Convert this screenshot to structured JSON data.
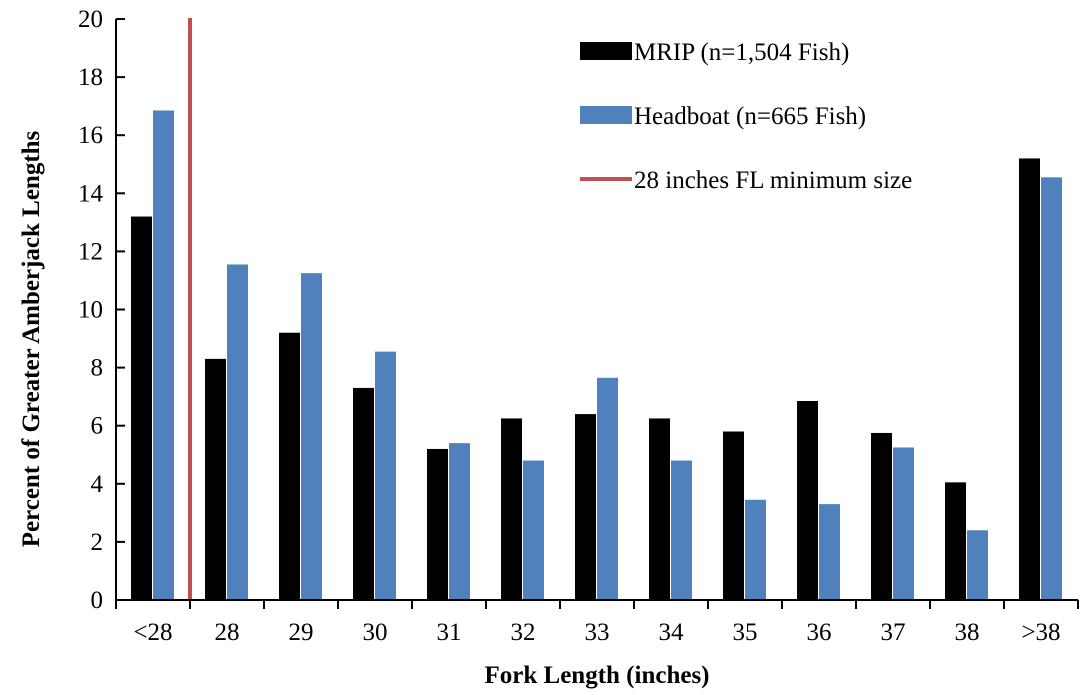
{
  "chart_data": {
    "type": "bar",
    "title": "",
    "xlabel": "Fork Length (inches)",
    "ylabel": "Percent of Greater Amberjack Lengths",
    "ylim": [
      0,
      20
    ],
    "yticks": [
      "0",
      "2",
      "4",
      "6",
      "8",
      "10",
      "12",
      "14",
      "16",
      "18",
      "20"
    ],
    "grid": false,
    "legend_position": "top-right",
    "categories": [
      "<28",
      "28",
      "29",
      "30",
      "31",
      "32",
      "33",
      "34",
      "35",
      "36",
      "37",
      "38",
      ">38"
    ],
    "series": [
      {
        "name": "MRIP (n=1,504 Fish)",
        "color": "#000000",
        "values": [
          13.2,
          8.3,
          9.2,
          7.3,
          5.2,
          6.25,
          6.4,
          6.25,
          5.8,
          6.85,
          5.75,
          4.05,
          15.2
        ]
      },
      {
        "name": "Headboat (n=665 Fish)",
        "color": "#4f81bd",
        "values": [
          16.85,
          11.55,
          11.25,
          8.55,
          5.4,
          4.8,
          7.65,
          4.8,
          3.45,
          3.3,
          5.25,
          2.4,
          14.55
        ]
      }
    ],
    "reference_line": {
      "name": "28 inches FL minimum size",
      "color": "#c0504d",
      "position_between": [
        "<28",
        "28"
      ]
    }
  }
}
